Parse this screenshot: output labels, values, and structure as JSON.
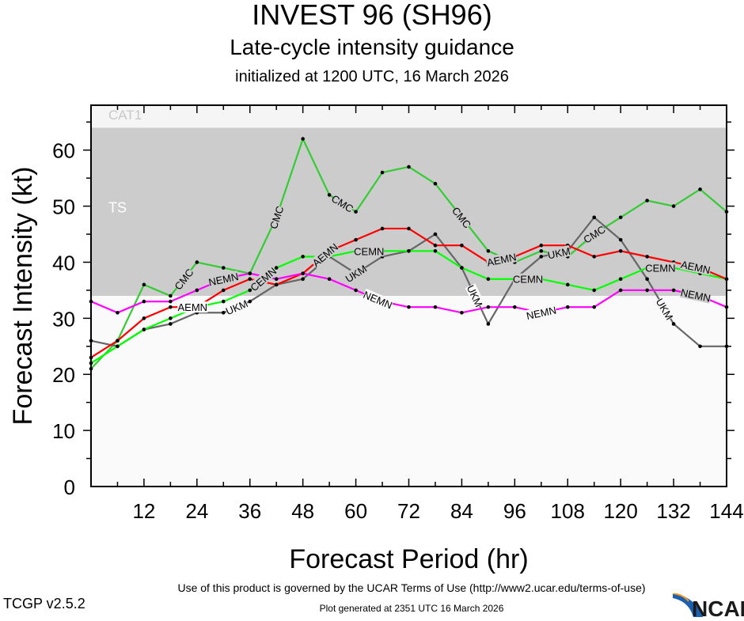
{
  "header": {
    "title": "INVEST 96 (SH96)",
    "subtitle": "Late-cycle intensity guidance",
    "init": "initialized at 1200 UTC, 16 March 2026"
  },
  "footer": {
    "terms": "Use of this product is governed by the UCAR Terms of Use (http://www2.ucar.edu/terms-of-use)",
    "generated": "Plot generated at 2351 UTC   16 March 2026",
    "version": "TCGP v2.5.2",
    "logo": "NCAR"
  },
  "chart_data": {
    "type": "line",
    "xlabel": "Forecast Period (hr)",
    "ylabel": "Forecast Intensity (kt)",
    "xlim": [
      0,
      144
    ],
    "ylim": [
      0,
      68
    ],
    "xticks": [
      12,
      24,
      36,
      48,
      60,
      72,
      84,
      96,
      108,
      120,
      132,
      144
    ],
    "yticks": [
      0,
      10,
      20,
      30,
      40,
      50,
      60
    ],
    "bands": [
      {
        "label": "TS",
        "from": 34,
        "to": 64,
        "color": "#cccccc"
      },
      {
        "label": "CAT1",
        "from": 64,
        "to": 68,
        "color": "#f5f5f5"
      }
    ],
    "below_band_color": "#fafafa",
    "x": [
      0,
      6,
      12,
      18,
      24,
      30,
      36,
      42,
      48,
      54,
      60,
      66,
      72,
      78,
      84,
      90,
      96,
      102,
      108,
      114,
      120,
      126,
      132,
      138,
      144
    ],
    "series": [
      {
        "name": "CMC",
        "color": "#33cc33",
        "values": [
          21,
          26,
          36,
          34,
          40,
          39,
          38,
          48,
          62,
          52,
          49,
          56,
          57,
          54,
          48,
          42,
          40,
          42,
          41,
          45,
          48,
          51,
          50,
          53,
          49
        ],
        "label_hours": [
          21,
          42,
          57,
          84,
          114
        ]
      },
      {
        "name": "UKM",
        "color": "#666666",
        "values": [
          26,
          25,
          28,
          29,
          31,
          31,
          33,
          36,
          37,
          41,
          38,
          41,
          42,
          45,
          39,
          29,
          37,
          41,
          42,
          48,
          44,
          37,
          29,
          25,
          25
        ],
        "label_hours": [
          33,
          60,
          87,
          108,
          130
        ]
      },
      {
        "name": "CEMN",
        "color": "#00ff00",
        "values": [
          22,
          25,
          28,
          30,
          32,
          33,
          35,
          39,
          41,
          41,
          42,
          42,
          42,
          42,
          39,
          37,
          37,
          37,
          36,
          35,
          37,
          39,
          39,
          38,
          37
        ],
        "label_hours": [
          33,
          63,
          99,
          129
        ]
      },
      {
        "name": "AEMN",
        "color": "#ff0000",
        "values": [
          23,
          26,
          30,
          32,
          32,
          35,
          37,
          36,
          38,
          42,
          44,
          46,
          46,
          43,
          43,
          40,
          41,
          43,
          43,
          41,
          42,
          41,
          40,
          39,
          37
        ],
        "label_hours": [
          33,
          57,
          93,
          129
        ]
      },
      {
        "name": "NEMN",
        "color": "#ff00ff",
        "values": [
          33,
          31,
          33,
          33,
          35,
          37,
          38,
          37,
          38,
          37,
          35,
          33,
          32,
          32,
          31,
          32,
          32,
          31,
          32,
          32,
          35,
          35,
          35,
          34,
          32
        ],
        "label_hours": [
          30,
          63,
          102,
          135
        ]
      }
    ]
  }
}
